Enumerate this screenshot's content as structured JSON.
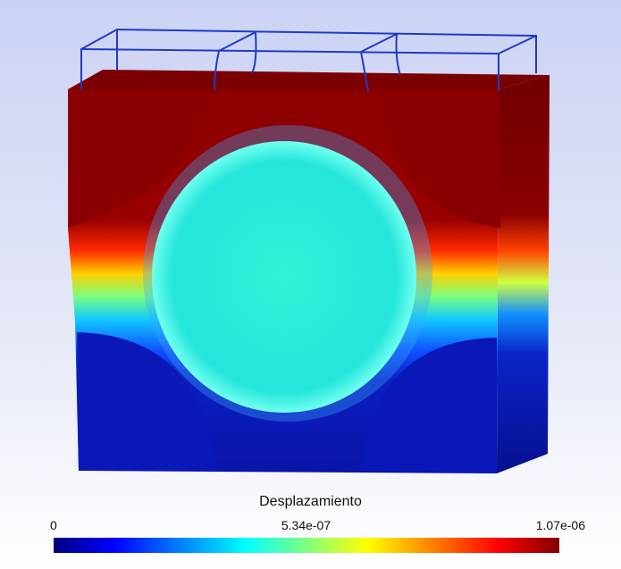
{
  "legend": {
    "title": "Desplazamiento",
    "min_label": "0",
    "mid_label": "5.34e-07",
    "max_label": "1.07e-06"
  },
  "colors": {
    "high": "#8b0000",
    "low": "#0a14b4",
    "center_disk": "#2ef0d8",
    "wireframe": "#1e3cc8"
  }
}
